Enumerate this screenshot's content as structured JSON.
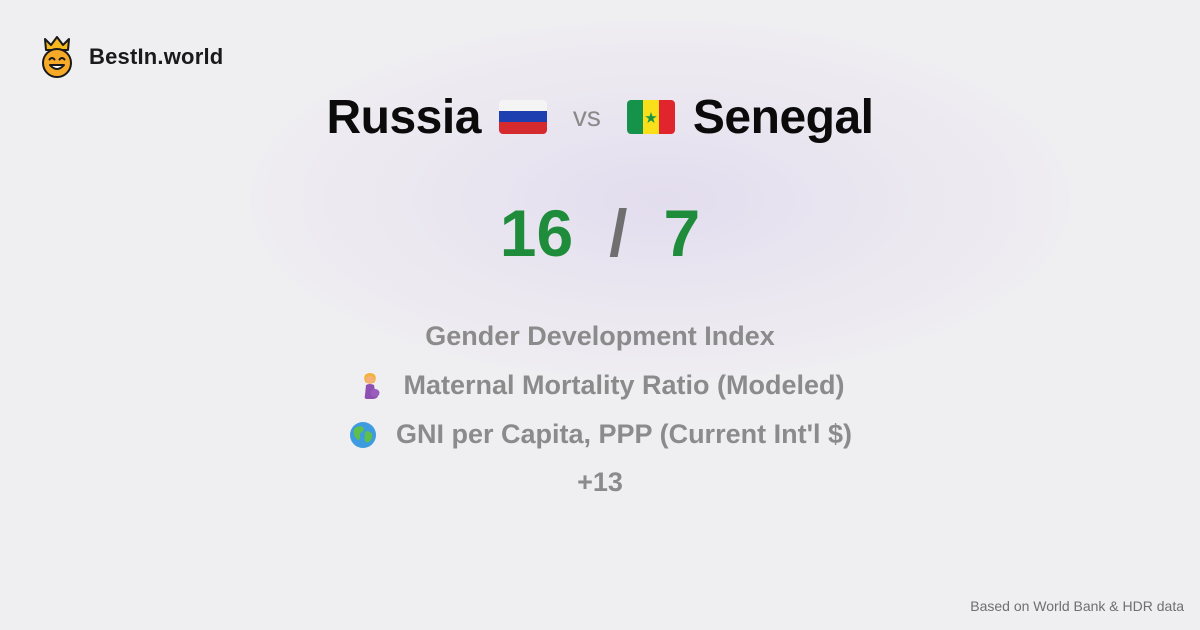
{
  "brand": {
    "name": "BestIn.world",
    "logo_icon": "crowned-smiley-icon"
  },
  "comparison": {
    "left_country": "Russia",
    "left_flag_icon": "russia-flag-icon",
    "vs_label": "vs",
    "right_country": "Senegal",
    "right_flag_icon": "senegal-flag-icon"
  },
  "score": {
    "left": "16",
    "separator": "/",
    "right": "7",
    "color": "#1e8c3a"
  },
  "metrics": [
    {
      "label": "Gender Development Index",
      "icon": ""
    },
    {
      "label": "Maternal Mortality Ratio (Modeled)",
      "icon": "pregnant-woman-icon"
    },
    {
      "label": "GNI per Capita, PPP (Current Int'l $)",
      "icon": "globe-icon"
    }
  ],
  "more_count": "+13",
  "footer": {
    "source": "Based on World Bank & HDR data"
  }
}
